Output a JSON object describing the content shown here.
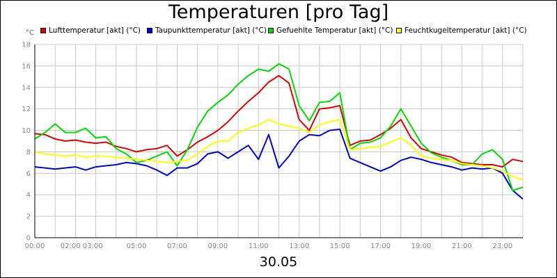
{
  "chart_data": {
    "type": "line",
    "title": "Temperaturen [pro Tag]",
    "date_label": "30.05",
    "y_unit": "°C",
    "ylim": [
      0,
      18
    ],
    "y_ticks": [
      "0",
      "2",
      "4",
      "6",
      "8",
      "10",
      "12",
      "14",
      "16",
      "18"
    ],
    "x_ticks": [
      {
        "h": 0,
        "label": "00:00"
      },
      {
        "h": 2.3,
        "label": "02:00 03:00"
      },
      {
        "h": 5,
        "label": "05:00"
      },
      {
        "h": 7,
        "label": "07:00"
      },
      {
        "h": 9,
        "label": "09:00"
      },
      {
        "h": 11,
        "label": "11:00"
      },
      {
        "h": 13,
        "label": "13:00"
      },
      {
        "h": 15,
        "label": "15:00"
      },
      {
        "h": 17,
        "label": "17:00"
      },
      {
        "h": 19,
        "label": "19:00"
      },
      {
        "h": 21,
        "label": "21:00"
      },
      {
        "h": 23,
        "label": "23:00"
      }
    ],
    "grid": true,
    "legend_position": "top",
    "series": [
      {
        "name": "Lufttemperatur [akt] (°C)",
        "color": "#e00000",
        "x": [
          0,
          0.5,
          1,
          1.5,
          2,
          2.5,
          3,
          3.5,
          4,
          4.5,
          5,
          5.5,
          6,
          6.5,
          7,
          7.5,
          8,
          8.5,
          9,
          9.5,
          10,
          10.5,
          11,
          11.5,
          12,
          12.5,
          13,
          13.5,
          14,
          14.5,
          15,
          15.5,
          16,
          16.5,
          17,
          17.5,
          18,
          18.5,
          19,
          19.5,
          20,
          20.5,
          21,
          21.5,
          22,
          22.5,
          23,
          23.5,
          24
        ],
        "values": [
          9.7,
          9.6,
          9.2,
          9.0,
          9.1,
          8.9,
          8.8,
          8.9,
          8.5,
          8.3,
          8.0,
          8.2,
          8.3,
          8.6,
          7.6,
          8.2,
          8.9,
          9.4,
          10.0,
          10.8,
          11.8,
          12.7,
          13.5,
          14.5,
          15.1,
          14.4,
          11.0,
          10.0,
          12.0,
          12.1,
          12.3,
          8.6,
          9.0,
          9.1,
          9.6,
          10.2,
          11.0,
          9.3,
          8.3,
          8.0,
          7.7,
          7.5,
          7.0,
          6.9,
          6.8,
          6.8,
          6.6,
          7.3,
          7.1
        ]
      },
      {
        "name": "Taupunkttemperatur [akt] (°C)",
        "color": "#0000dd",
        "x": [
          0,
          0.5,
          1,
          1.5,
          2,
          2.5,
          3,
          3.5,
          4,
          4.5,
          5,
          5.5,
          6,
          6.5,
          7,
          7.5,
          8,
          8.5,
          9,
          9.5,
          10,
          10.5,
          11,
          11.5,
          12,
          12.5,
          13,
          13.5,
          14,
          14.5,
          15,
          15.5,
          16,
          16.5,
          17,
          17.5,
          18,
          18.5,
          19,
          19.5,
          20,
          20.5,
          21,
          21.5,
          22,
          22.5,
          23,
          23.5,
          24
        ],
        "values": [
          6.6,
          6.5,
          6.4,
          6.5,
          6.6,
          6.3,
          6.6,
          6.7,
          6.8,
          7.0,
          6.9,
          6.7,
          6.3,
          5.8,
          6.5,
          6.5,
          6.9,
          7.8,
          8.0,
          7.4,
          8.0,
          8.6,
          7.3,
          9.6,
          6.5,
          7.6,
          9.0,
          9.6,
          9.5,
          10.0,
          10.1,
          7.4,
          7.0,
          6.6,
          6.2,
          6.6,
          7.2,
          7.5,
          7.3,
          7.0,
          6.8,
          6.6,
          6.3,
          6.5,
          6.4,
          6.5,
          6.0,
          4.4,
          3.6
        ]
      },
      {
        "name": "Gefuehlte Temperatur [akt] (°C)",
        "color": "#00dd00",
        "x": [
          0,
          0.5,
          1,
          1.5,
          2,
          2.5,
          3,
          3.5,
          4,
          4.5,
          5,
          5.5,
          6,
          6.5,
          7,
          7.5,
          8,
          8.5,
          9,
          9.5,
          10,
          10.5,
          11,
          11.5,
          12,
          12.5,
          13,
          13.5,
          14,
          14.5,
          15,
          15.5,
          16,
          16.5,
          17,
          17.5,
          18,
          18.5,
          19,
          19.5,
          20,
          20.5,
          21,
          21.5,
          22,
          22.5,
          23,
          23.5,
          24
        ],
        "values": [
          9.2,
          9.8,
          10.6,
          9.8,
          9.8,
          10.2,
          9.3,
          9.4,
          8.3,
          7.8,
          7.0,
          7.2,
          7.6,
          8.0,
          6.7,
          8.2,
          10.3,
          11.8,
          12.6,
          13.3,
          14.3,
          15.1,
          15.7,
          15.5,
          16.2,
          15.7,
          12.3,
          10.9,
          12.6,
          12.7,
          13.5,
          8.2,
          8.8,
          8.9,
          9.3,
          10.4,
          12.0,
          10.4,
          8.8,
          7.9,
          7.5,
          7.2,
          6.8,
          6.8,
          7.8,
          8.2,
          7.3,
          4.4,
          4.7
        ]
      },
      {
        "name": "Feuchtkugeltemperatur [akt] (°C)",
        "color": "#ffff00",
        "x": [
          0,
          0.5,
          1,
          1.5,
          2,
          2.5,
          3,
          3.5,
          4,
          4.5,
          5,
          5.5,
          6,
          6.5,
          7,
          7.5,
          8,
          8.5,
          9,
          9.5,
          10,
          10.5,
          11,
          11.5,
          12,
          12.5,
          13,
          13.5,
          14,
          14.5,
          15,
          15.5,
          16,
          16.5,
          17,
          17.5,
          18,
          18.5,
          19,
          19.5,
          20,
          20.5,
          21,
          21.5,
          22,
          22.5,
          23,
          23.5,
          24
        ],
        "values": [
          8.0,
          7.8,
          7.7,
          7.6,
          7.7,
          7.5,
          7.6,
          7.6,
          7.5,
          7.4,
          7.3,
          7.2,
          7.1,
          7.0,
          7.1,
          7.2,
          7.8,
          8.5,
          9.0,
          9.0,
          9.8,
          10.2,
          10.5,
          11.0,
          10.6,
          10.4,
          10.2,
          9.8,
          10.5,
          10.8,
          11.0,
          8.2,
          8.3,
          8.4,
          8.5,
          8.9,
          9.3,
          8.6,
          7.6,
          7.4,
          7.3,
          7.2,
          6.9,
          6.8,
          6.7,
          6.5,
          6.2,
          5.7,
          5.4
        ]
      }
    ]
  }
}
